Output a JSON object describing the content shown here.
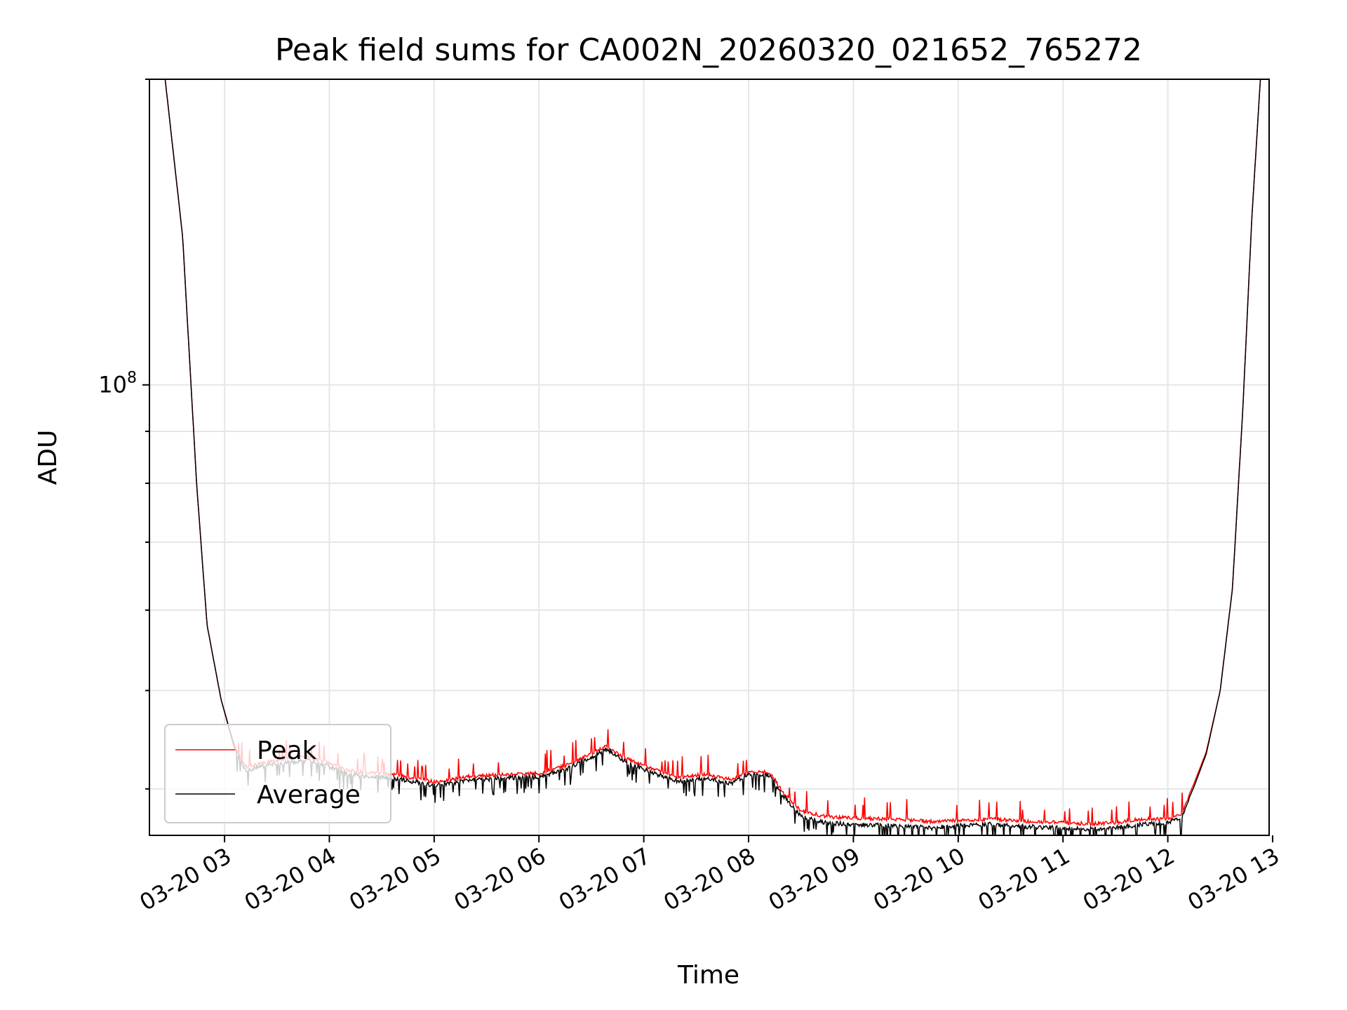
{
  "chart_data": {
    "type": "line",
    "title": "Peak field sums for CA002N_20260320_021652_765272",
    "xlabel": "Time",
    "ylabel": "ADU",
    "y_scale": "log",
    "grid": true,
    "legend_position": "lower-left",
    "x_range": [
      "2026-03-20 02:17",
      "2026-03-20 12:58"
    ],
    "ylim": [
      36000000,
      200000000
    ],
    "x_ticks": [
      {
        "value": "2026-03-20 03:00",
        "label": "03-20 03"
      },
      {
        "value": "2026-03-20 04:00",
        "label": "03-20 04"
      },
      {
        "value": "2026-03-20 05:00",
        "label": "03-20 05"
      },
      {
        "value": "2026-03-20 06:00",
        "label": "03-20 06"
      },
      {
        "value": "2026-03-20 07:00",
        "label": "03-20 07"
      },
      {
        "value": "2026-03-20 08:00",
        "label": "03-20 08"
      },
      {
        "value": "2026-03-20 09:00",
        "label": "03-20 09"
      },
      {
        "value": "2026-03-20 10:00",
        "label": "03-20 10"
      },
      {
        "value": "2026-03-20 11:00",
        "label": "03-20 11"
      },
      {
        "value": "2026-03-20 12:00",
        "label": "03-20 12"
      },
      {
        "value": "2026-03-20 13:00",
        "label": "03-20 13"
      }
    ],
    "y_major_tick": {
      "value": 100000000,
      "base": "10",
      "exponent": "8"
    },
    "series": [
      {
        "name": "Peak",
        "color": "#ff0000",
        "points": [
          [
            "2026-03-20 02:26",
            200000000
          ],
          [
            "2026-03-20 02:36",
            140000000
          ],
          [
            "2026-03-20 02:44",
            80000000
          ],
          [
            "2026-03-20 02:50",
            58000000
          ],
          [
            "2026-03-20 02:58",
            49000000
          ],
          [
            "2026-03-20 03:05",
            44500000
          ],
          [
            "2026-03-20 03:12",
            42200000
          ],
          [
            "2026-03-20 03:24",
            42700000
          ],
          [
            "2026-03-20 03:36",
            43000000
          ],
          [
            "2026-03-20 03:48",
            43200000
          ],
          [
            "2026-03-20 03:56",
            42800000
          ],
          [
            "2026-03-20 04:10",
            41900000
          ],
          [
            "2026-03-20 04:25",
            41600000
          ],
          [
            "2026-03-20 04:40",
            41400000
          ],
          [
            "2026-03-20 05:00",
            40800000
          ],
          [
            "2026-03-20 05:20",
            41300000
          ],
          [
            "2026-03-20 05:40",
            41500000
          ],
          [
            "2026-03-20 06:00",
            41600000
          ],
          [
            "2026-03-20 06:15",
            42300000
          ],
          [
            "2026-03-20 06:30",
            43500000
          ],
          [
            "2026-03-20 06:38",
            44200000
          ],
          [
            "2026-03-20 06:50",
            43000000
          ],
          [
            "2026-03-20 07:05",
            42000000
          ],
          [
            "2026-03-20 07:20",
            41200000
          ],
          [
            "2026-03-20 07:35",
            41500000
          ],
          [
            "2026-03-20 07:50",
            41000000
          ],
          [
            "2026-03-20 08:00",
            41700000
          ],
          [
            "2026-03-20 08:12",
            41700000
          ],
          [
            "2026-03-20 08:20",
            39800000
          ],
          [
            "2026-03-20 08:30",
            38200000
          ],
          [
            "2026-03-20 08:45",
            37700000
          ],
          [
            "2026-03-20 09:00",
            37600000
          ],
          [
            "2026-03-20 09:20",
            37500000
          ],
          [
            "2026-03-20 09:45",
            37300000
          ],
          [
            "2026-03-20 10:00",
            37400000
          ],
          [
            "2026-03-20 10:20",
            37500000
          ],
          [
            "2026-03-20 10:40",
            37300000
          ],
          [
            "2026-03-20 11:00",
            37200000
          ],
          [
            "2026-03-20 11:15",
            37100000
          ],
          [
            "2026-03-20 11:30",
            37200000
          ],
          [
            "2026-03-20 11:45",
            37500000
          ],
          [
            "2026-03-20 12:00",
            37500000
          ],
          [
            "2026-03-20 12:08",
            38000000
          ],
          [
            "2026-03-20 12:15",
            40500000
          ],
          [
            "2026-03-20 12:22",
            43500000
          ],
          [
            "2026-03-20 12:30",
            50000000
          ],
          [
            "2026-03-20 12:37",
            63000000
          ],
          [
            "2026-03-20 12:43",
            95000000
          ],
          [
            "2026-03-20 12:48",
            145000000
          ],
          [
            "2026-03-20 12:53",
            200000000
          ]
        ]
      },
      {
        "name": "Average",
        "color": "#000000",
        "points": [
          [
            "2026-03-20 02:26",
            200000000
          ],
          [
            "2026-03-20 02:36",
            140000000
          ],
          [
            "2026-03-20 02:44",
            80000000
          ],
          [
            "2026-03-20 02:50",
            58000000
          ],
          [
            "2026-03-20 02:58",
            49000000
          ],
          [
            "2026-03-20 03:05",
            44300000
          ],
          [
            "2026-03-20 03:12",
            41900000
          ],
          [
            "2026-03-20 03:24",
            42400000
          ],
          [
            "2026-03-20 03:36",
            42700000
          ],
          [
            "2026-03-20 03:48",
            42900000
          ],
          [
            "2026-03-20 03:56",
            42500000
          ],
          [
            "2026-03-20 04:10",
            41600000
          ],
          [
            "2026-03-20 04:25",
            41300000
          ],
          [
            "2026-03-20 04:40",
            41100000
          ],
          [
            "2026-03-20 05:00",
            40500000
          ],
          [
            "2026-03-20 05:20",
            41000000
          ],
          [
            "2026-03-20 05:40",
            41200000
          ],
          [
            "2026-03-20 06:00",
            41300000
          ],
          [
            "2026-03-20 06:15",
            42000000
          ],
          [
            "2026-03-20 06:30",
            43200000
          ],
          [
            "2026-03-20 06:38",
            44000000
          ],
          [
            "2026-03-20 06:50",
            42700000
          ],
          [
            "2026-03-20 07:05",
            41700000
          ],
          [
            "2026-03-20 07:20",
            40900000
          ],
          [
            "2026-03-20 07:35",
            41200000
          ],
          [
            "2026-03-20 07:50",
            40700000
          ],
          [
            "2026-03-20 08:00",
            41500000
          ],
          [
            "2026-03-20 08:12",
            41500000
          ],
          [
            "2026-03-20 08:20",
            39500000
          ],
          [
            "2026-03-20 08:30",
            37800000
          ],
          [
            "2026-03-20 08:45",
            37200000
          ],
          [
            "2026-03-20 09:00",
            37100000
          ],
          [
            "2026-03-20 09:20",
            37000000
          ],
          [
            "2026-03-20 09:45",
            36800000
          ],
          [
            "2026-03-20 10:00",
            37000000
          ],
          [
            "2026-03-20 10:20",
            37100000
          ],
          [
            "2026-03-20 10:40",
            36900000
          ],
          [
            "2026-03-20 11:00",
            36800000
          ],
          [
            "2026-03-20 11:15",
            36700000
          ],
          [
            "2026-03-20 11:30",
            36800000
          ],
          [
            "2026-03-20 11:45",
            37100000
          ],
          [
            "2026-03-20 12:00",
            37200000
          ],
          [
            "2026-03-20 12:08",
            37700000
          ],
          [
            "2026-03-20 12:15",
            40200000
          ],
          [
            "2026-03-20 12:22",
            43300000
          ],
          [
            "2026-03-20 12:30",
            50000000
          ],
          [
            "2026-03-20 12:37",
            63000000
          ],
          [
            "2026-03-20 12:43",
            95000000
          ],
          [
            "2026-03-20 12:48",
            145000000
          ],
          [
            "2026-03-20 12:53",
            200000000
          ]
        ]
      }
    ]
  }
}
